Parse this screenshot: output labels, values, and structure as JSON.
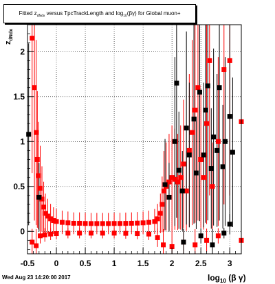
{
  "title": {
    "prefix": "Fitted  z",
    "sub": "dNdx",
    "middle": " versus TpcTrackLength and log",
    "sub2": "10",
    "suffix": "(βγ) for Global muon+"
  },
  "timestamp": "Wed Aug 23 14:20:00 2017",
  "colors": {
    "red": "#ff0000",
    "black": "#000000",
    "grid": "#000000"
  },
  "chart_data": {
    "type": "scatter",
    "title": "Fitted z_dNdx versus TpcTrackLength and log10(βγ) for Global muon+",
    "xlabel": "log₁₀(βγ)",
    "ylabel": "z_dNdx",
    "xlim": [
      -0.5,
      3.2
    ],
    "ylim": [
      -0.25,
      2.3
    ],
    "grid": true,
    "x_ticks": [
      "-0.5",
      "0",
      "0.5",
      "1",
      "1.5",
      "2",
      "2.5",
      "3"
    ],
    "y_ticks": [
      "0",
      "0.5",
      "1",
      "1.5",
      "2"
    ],
    "x_tick_values": [
      -0.5,
      0,
      0.5,
      1,
      1.5,
      2,
      2.5,
      3
    ],
    "y_tick_values": [
      0,
      0.5,
      1,
      1.5,
      2
    ],
    "series": [
      {
        "color": "#ff0000",
        "points": [
          [
            -0.42,
            2.15
          ],
          [
            -0.38,
            1.6
          ],
          [
            -0.35,
            1.1
          ],
          [
            -0.33,
            0.8
          ],
          [
            -0.31,
            0.62
          ],
          [
            -0.28,
            0.48
          ],
          [
            -0.25,
            0.36
          ],
          [
            -0.22,
            0.27
          ],
          [
            -0.19,
            0.2
          ],
          [
            -0.15,
            0.17
          ],
          [
            -0.1,
            0.14
          ],
          [
            -0.05,
            0.12
          ],
          [
            0.0,
            0.11
          ],
          [
            0.1,
            0.1
          ],
          [
            0.2,
            0.095
          ],
          [
            0.3,
            0.09
          ],
          [
            0.4,
            0.09
          ],
          [
            0.5,
            0.088
          ],
          [
            0.6,
            0.087
          ],
          [
            0.7,
            0.087
          ],
          [
            0.8,
            0.087
          ],
          [
            0.9,
            0.087
          ],
          [
            1.0,
            0.088
          ],
          [
            1.1,
            0.088
          ],
          [
            1.2,
            0.089
          ],
          [
            1.3,
            0.09
          ],
          [
            1.4,
            0.092
          ],
          [
            1.5,
            0.095
          ],
          [
            1.6,
            0.1
          ],
          [
            1.7,
            0.11
          ],
          [
            1.75,
            0.14
          ],
          [
            1.8,
            0.2
          ],
          [
            1.83,
            0.3
          ],
          [
            1.86,
            0.45
          ],
          [
            1.9,
            0.5
          ],
          [
            1.95,
            0.55
          ],
          [
            2.0,
            0.6
          ],
          [
            2.05,
            0.58
          ],
          [
            2.1,
            0.55
          ],
          [
            2.15,
            0.6
          ],
          [
            2.2,
            0.75
          ],
          [
            2.25,
            0.45
          ],
          [
            2.3,
            0.9
          ],
          [
            2.35,
            1.1
          ],
          [
            2.4,
            1.35
          ],
          [
            2.45,
            1.6
          ],
          [
            2.5,
            0.8
          ],
          [
            2.55,
            0.6
          ],
          [
            2.6,
            1.2
          ],
          [
            2.65,
            1.9
          ],
          [
            2.7,
            0.5
          ],
          [
            2.8,
            1.0
          ],
          [
            2.9,
            1.8
          ],
          [
            3.0,
            1.9
          ],
          [
            3.2,
            1.22
          ],
          [
            -0.42,
            -0.12
          ],
          [
            -0.35,
            -0.16
          ],
          [
            -0.28,
            -0.05
          ],
          [
            -0.2,
            -0.04
          ],
          [
            -0.1,
            -0.03
          ],
          [
            0.0,
            -0.025
          ],
          [
            0.2,
            -0.02
          ],
          [
            0.4,
            -0.02
          ],
          [
            0.6,
            -0.02
          ],
          [
            0.8,
            -0.02
          ],
          [
            1.0,
            -0.02
          ],
          [
            1.2,
            -0.022
          ],
          [
            1.4,
            -0.025
          ],
          [
            1.6,
            -0.03
          ],
          [
            1.75,
            -0.07
          ],
          [
            1.85,
            -0.15
          ],
          [
            2.0,
            -0.17
          ],
          [
            2.2,
            -0.12
          ],
          [
            2.4,
            -0.15
          ],
          [
            2.6,
            -0.1
          ],
          [
            2.8,
            -0.05
          ],
          [
            3.2,
            -0.1
          ]
        ]
      },
      {
        "color": "#000000",
        "points": [
          [
            -0.48,
            1.08
          ],
          [
            -0.3,
            0.38
          ],
          [
            1.88,
            0.52
          ],
          [
            1.95,
            0.38
          ],
          [
            2.05,
            1.0
          ],
          [
            2.08,
            1.65
          ],
          [
            2.12,
            0.68
          ],
          [
            2.18,
            0.45
          ],
          [
            2.25,
            1.15
          ],
          [
            2.3,
            0.85
          ],
          [
            2.38,
            1.25
          ],
          [
            2.42,
            0.65
          ],
          [
            2.48,
            1.55
          ],
          [
            2.55,
            0.85
          ],
          [
            2.58,
            1.35
          ],
          [
            2.62,
            1.62
          ],
          [
            2.68,
            0.7
          ],
          [
            2.72,
            1.05
          ],
          [
            2.78,
            0.9
          ],
          [
            2.82,
            1.6
          ],
          [
            2.88,
            0.72
          ],
          [
            2.92,
            1.0
          ],
          [
            3.0,
            1.28
          ],
          [
            3.05,
            0.88
          ],
          [
            3.0,
            0.08
          ],
          [
            2.5,
            -0.05
          ],
          [
            2.2,
            -0.12
          ],
          [
            2.7,
            -0.15
          ],
          [
            2.9,
            -0.02
          ]
        ]
      }
    ]
  }
}
